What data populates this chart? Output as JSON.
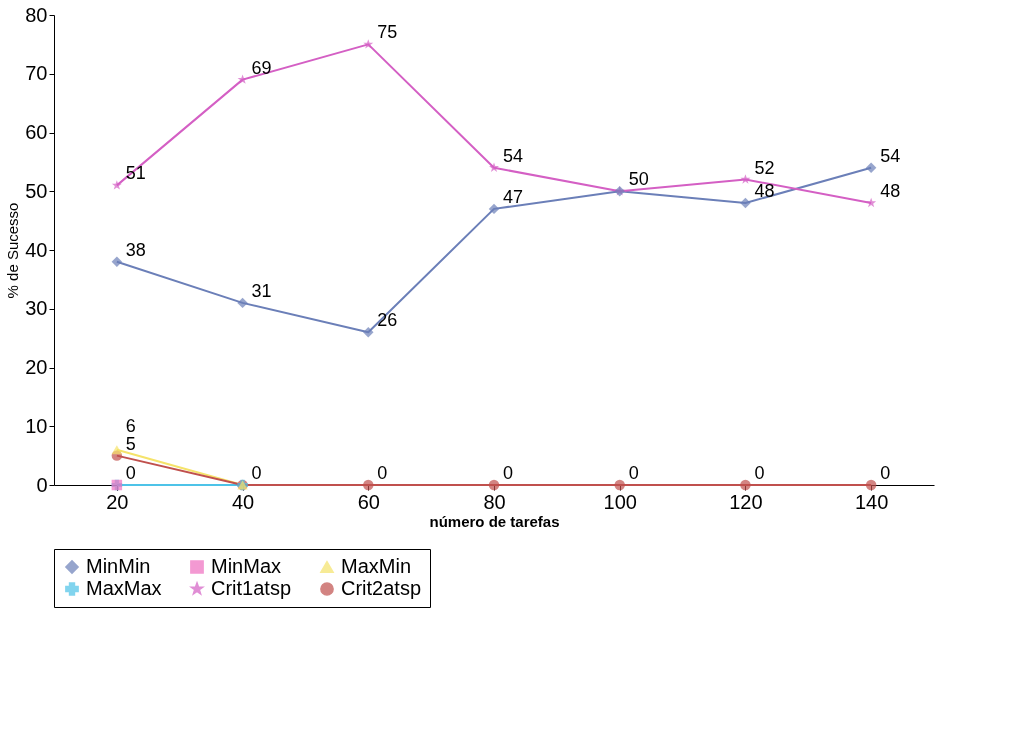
{
  "chart_data": {
    "type": "line",
    "xlabel": "número de tarefas",
    "ylabel": "% de Sucesso",
    "categories": [
      "20",
      "40",
      "60",
      "80",
      "100",
      "120",
      "140"
    ],
    "ylim": [
      0,
      80
    ],
    "yticks": [
      0,
      10,
      20,
      30,
      40,
      50,
      60,
      70,
      80
    ],
    "grid": false,
    "legend": "bottom",
    "line_style": "solid",
    "series": [
      {
        "name": "MinMin",
        "color": "#6b7fb8",
        "marker": "diamond",
        "values": [
          38,
          31,
          26,
          47,
          50,
          48,
          54
        ],
        "value_labels": [
          "38",
          "31",
          "26",
          "47",
          null,
          "48",
          "54"
        ]
      },
      {
        "name": "MinMax",
        "color": "#ef6fc0",
        "marker": "square",
        "values": [
          0,
          null,
          null,
          null,
          null,
          null,
          null
        ],
        "value_labels": [
          null,
          null,
          null,
          null,
          null,
          null,
          null
        ]
      },
      {
        "name": "MaxMin",
        "color": "#f5e36a",
        "marker": "triangle",
        "values": [
          6,
          0,
          null,
          null,
          null,
          null,
          null
        ],
        "value_labels": [
          "6",
          null,
          null,
          null,
          null,
          null,
          null
        ]
      },
      {
        "name": "MaxMax",
        "color": "#4dc3e8",
        "marker": "cross",
        "values": [
          0,
          0,
          null,
          null,
          null,
          null,
          null
        ],
        "value_labels": [
          "0",
          null,
          null,
          null,
          null,
          null,
          null
        ]
      },
      {
        "name": "Crit1atsp",
        "color": "#d45fc4",
        "marker": "star",
        "values": [
          51,
          69,
          75,
          54,
          50,
          52,
          48
        ],
        "value_labels": [
          "51",
          "69",
          "75",
          "54",
          "50",
          "52",
          "48"
        ]
      },
      {
        "name": "Crit2atsp",
        "color": "#c0504d",
        "marker": "circle",
        "values": [
          5,
          0,
          0,
          0,
          0,
          0,
          0
        ],
        "value_labels": [
          "5",
          "0",
          "0",
          "0",
          "0",
          "0",
          "0"
        ]
      }
    ]
  }
}
